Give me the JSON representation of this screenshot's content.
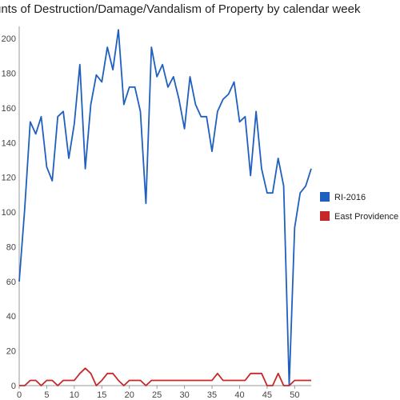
{
  "chart_data": {
    "type": "line",
    "title": "unts of Destruction/Damage/Vandalism of Property by calendar week",
    "xlabel": "",
    "ylabel": "",
    "xlim": [
      0,
      53
    ],
    "ylim": [
      0,
      207
    ],
    "xticks": [
      0,
      5,
      10,
      15,
      20,
      25,
      30,
      35,
      40,
      45,
      50
    ],
    "yticks": [
      0,
      20,
      40,
      60,
      80,
      100,
      120,
      140,
      160,
      180,
      200
    ],
    "grid": false,
    "legend_position": "right",
    "series": [
      {
        "name": "RI-2016",
        "color": "#1f5fbf",
        "x": [
          0,
          1,
          2,
          3,
          4,
          5,
          6,
          7,
          8,
          9,
          10,
          11,
          12,
          13,
          14,
          15,
          16,
          17,
          18,
          19,
          20,
          21,
          22,
          23,
          24,
          25,
          26,
          27,
          28,
          29,
          30,
          31,
          32,
          33,
          34,
          35,
          36,
          37,
          38,
          39,
          40,
          41,
          42,
          43,
          44,
          45,
          46,
          47,
          48,
          49,
          50,
          51,
          52,
          53
        ],
        "y": [
          60,
          102,
          152,
          145,
          155,
          126,
          118,
          155,
          158,
          131,
          151,
          185,
          125,
          162,
          179,
          175,
          195,
          182,
          205,
          162,
          172,
          172,
          158,
          105,
          195,
          178,
          185,
          172,
          178,
          165,
          148,
          178,
          162,
          155,
          155,
          135,
          158,
          165,
          168,
          175,
          152,
          155,
          121,
          158,
          125,
          111,
          111,
          131,
          115,
          0,
          91,
          111,
          115,
          125
        ]
      },
      {
        "name": "East Providence",
        "color": "#c62828",
        "x": [
          0,
          1,
          2,
          3,
          4,
          5,
          6,
          7,
          8,
          9,
          10,
          11,
          12,
          13,
          14,
          15,
          16,
          17,
          18,
          19,
          20,
          21,
          22,
          23,
          24,
          25,
          26,
          27,
          28,
          29,
          30,
          31,
          32,
          33,
          34,
          35,
          36,
          37,
          38,
          39,
          40,
          41,
          42,
          43,
          44,
          45,
          46,
          47,
          48,
          49,
          50,
          51,
          52,
          53
        ],
        "y": [
          0,
          0,
          3,
          3,
          0,
          3,
          3,
          0,
          3,
          3,
          3,
          7,
          10,
          7,
          0,
          3,
          7,
          7,
          3,
          0,
          3,
          3,
          3,
          0,
          3,
          3,
          3,
          3,
          3,
          3,
          3,
          3,
          3,
          3,
          3,
          3,
          7,
          3,
          3,
          3,
          3,
          3,
          7,
          7,
          7,
          0,
          0,
          7,
          0,
          0,
          3,
          3,
          3,
          3
        ]
      }
    ]
  }
}
